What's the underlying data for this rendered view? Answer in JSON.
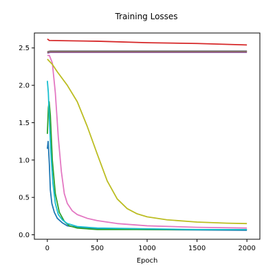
{
  "chart_data": {
    "type": "line",
    "title": "Training Losses",
    "xlabel": "Epoch",
    "ylabel": "",
    "xlim": [
      -130,
      2130
    ],
    "ylim": [
      -0.06,
      2.7
    ],
    "xticks": [
      0,
      500,
      1000,
      1500,
      2000
    ],
    "xtick_labels": [
      "0",
      "500",
      "1000",
      "1500",
      "2000"
    ],
    "yticks": [
      0.0,
      0.5,
      1.0,
      1.5,
      2.0,
      2.5
    ],
    "ytick_labels": [
      "0.0",
      "0.5",
      "1.0",
      "1.5",
      "2.0",
      "2.5"
    ],
    "grid": false,
    "series": [
      {
        "color": "#1f77b4",
        "points": [
          [
            0,
            1.15
          ],
          [
            8,
            1.25
          ],
          [
            20,
            0.95
          ],
          [
            30,
            0.6
          ],
          [
            45,
            0.42
          ],
          [
            70,
            0.3
          ],
          [
            100,
            0.22
          ],
          [
            150,
            0.16
          ],
          [
            200,
            0.12
          ],
          [
            300,
            0.1
          ],
          [
            500,
            0.08
          ],
          [
            1000,
            0.07
          ],
          [
            2000,
            0.06
          ]
        ]
      },
      {
        "color": "#ff7f0e",
        "points": [
          [
            0,
            2.44
          ],
          [
            30,
            2.45
          ],
          [
            200,
            2.45
          ],
          [
            1000,
            2.45
          ],
          [
            2000,
            2.45
          ]
        ]
      },
      {
        "color": "#2ca02c",
        "points": [
          [
            0,
            1.35
          ],
          [
            10,
            1.7
          ],
          [
            18,
            1.78
          ],
          [
            30,
            1.6
          ],
          [
            50,
            1.0
          ],
          [
            80,
            0.55
          ],
          [
            120,
            0.3
          ],
          [
            170,
            0.18
          ],
          [
            220,
            0.12
          ],
          [
            300,
            0.09
          ],
          [
            500,
            0.07
          ],
          [
            1000,
            0.07
          ],
          [
            2000,
            0.07
          ]
        ]
      },
      {
        "color": "#d62728",
        "points": [
          [
            0,
            2.62
          ],
          [
            20,
            2.6
          ],
          [
            500,
            2.59
          ],
          [
            1000,
            2.57
          ],
          [
            1500,
            2.56
          ],
          [
            2000,
            2.54
          ]
        ]
      },
      {
        "color": "#9467bd",
        "points": [
          [
            0,
            2.43
          ],
          [
            30,
            2.44
          ],
          [
            500,
            2.44
          ],
          [
            1000,
            2.44
          ],
          [
            2000,
            2.44
          ]
        ]
      },
      {
        "color": "#8c564b",
        "points": [
          [
            0,
            2.44
          ],
          [
            30,
            2.45
          ],
          [
            500,
            2.45
          ],
          [
            1000,
            2.45
          ],
          [
            2000,
            2.45
          ]
        ]
      },
      {
        "color": "#e377c2",
        "points": [
          [
            0,
            2.4
          ],
          [
            20,
            2.4
          ],
          [
            50,
            2.3
          ],
          [
            80,
            1.9
          ],
          [
            110,
            1.3
          ],
          [
            140,
            0.85
          ],
          [
            170,
            0.55
          ],
          [
            200,
            0.42
          ],
          [
            250,
            0.32
          ],
          [
            300,
            0.27
          ],
          [
            400,
            0.22
          ],
          [
            500,
            0.19
          ],
          [
            700,
            0.15
          ],
          [
            1000,
            0.12
          ],
          [
            1500,
            0.1
          ],
          [
            2000,
            0.09
          ]
        ]
      },
      {
        "color": "#7f7f7f",
        "points": [
          [
            0,
            2.45
          ],
          [
            30,
            2.46
          ],
          [
            500,
            2.46
          ],
          [
            1000,
            2.46
          ],
          [
            2000,
            2.46
          ]
        ]
      },
      {
        "color": "#bcbd22",
        "points": [
          [
            0,
            2.35
          ],
          [
            50,
            2.28
          ],
          [
            100,
            2.18
          ],
          [
            200,
            2.0
          ],
          [
            300,
            1.78
          ],
          [
            400,
            1.45
          ],
          [
            500,
            1.08
          ],
          [
            600,
            0.72
          ],
          [
            700,
            0.48
          ],
          [
            800,
            0.35
          ],
          [
            900,
            0.28
          ],
          [
            1000,
            0.24
          ],
          [
            1200,
            0.2
          ],
          [
            1500,
            0.17
          ],
          [
            1800,
            0.155
          ],
          [
            2000,
            0.15
          ]
        ]
      },
      {
        "color": "#17becf",
        "points": [
          [
            0,
            2.06
          ],
          [
            10,
            1.9
          ],
          [
            20,
            1.55
          ],
          [
            35,
            1.1
          ],
          [
            55,
            0.7
          ],
          [
            80,
            0.42
          ],
          [
            110,
            0.27
          ],
          [
            150,
            0.2
          ],
          [
            200,
            0.15
          ],
          [
            300,
            0.11
          ],
          [
            500,
            0.09
          ],
          [
            1000,
            0.08
          ],
          [
            1500,
            0.07
          ],
          [
            2000,
            0.07
          ]
        ]
      }
    ]
  }
}
